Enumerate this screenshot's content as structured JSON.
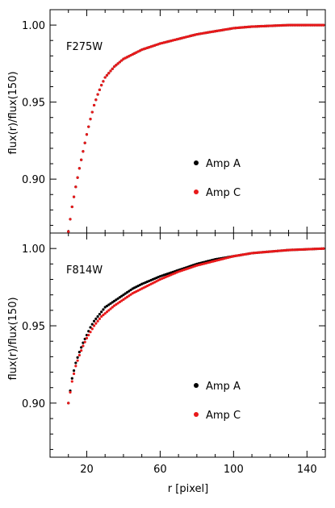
{
  "chart_data": [
    {
      "type": "scatter",
      "panel_label": "F275W",
      "ylabel": "flux(r)/flux(150)",
      "ylim": [
        0.865,
        1.01
      ],
      "xlim": [
        0,
        150
      ],
      "y_ticks": [
        0.9,
        0.95,
        1.0
      ],
      "y_tick_labels": [
        "0.90",
        "0.95",
        "1.00"
      ],
      "legend_placement": "center-right",
      "series": [
        {
          "name": "Amp A",
          "color": "#000000",
          "x": [
            10,
            12,
            14,
            16,
            18,
            20,
            22,
            24,
            26,
            28,
            30,
            35,
            40,
            45,
            50,
            60,
            70,
            80,
            90,
            100,
            110,
            120,
            130,
            140,
            150
          ],
          "y": [
            0.866,
            0.882,
            0.895,
            0.907,
            0.918,
            0.929,
            0.939,
            0.948,
            0.955,
            0.961,
            0.966,
            0.973,
            0.978,
            0.981,
            0.984,
            0.988,
            0.991,
            0.994,
            0.996,
            0.998,
            0.999,
            0.9995,
            1.0,
            1.0,
            1.0
          ]
        },
        {
          "name": "Amp C",
          "color": "#e8191a",
          "x": [
            10,
            12,
            14,
            16,
            18,
            20,
            22,
            24,
            26,
            28,
            30,
            35,
            40,
            45,
            50,
            60,
            70,
            80,
            90,
            100,
            110,
            120,
            130,
            140,
            150
          ],
          "y": [
            0.866,
            0.882,
            0.895,
            0.907,
            0.918,
            0.929,
            0.939,
            0.948,
            0.955,
            0.961,
            0.966,
            0.973,
            0.978,
            0.981,
            0.984,
            0.988,
            0.991,
            0.994,
            0.996,
            0.998,
            0.999,
            0.9995,
            1.0,
            1.0,
            1.0
          ]
        }
      ]
    },
    {
      "type": "scatter",
      "panel_label": "F814W",
      "ylabel": "flux(r)/flux(150)",
      "xlabel": "r [pixel]",
      "ylim": [
        0.865,
        1.01
      ],
      "xlim": [
        0,
        150
      ],
      "x_ticks": [
        20,
        60,
        100,
        140
      ],
      "x_tick_labels": [
        "20",
        "60",
        "100",
        "140"
      ],
      "y_ticks": [
        0.9,
        0.95,
        1.0
      ],
      "y_tick_labels": [
        "0.90",
        "0.95",
        "1.00"
      ],
      "legend_placement": "center-right",
      "series": [
        {
          "name": "Amp A",
          "color": "#000000",
          "x": [
            10,
            12,
            14,
            16,
            18,
            20,
            22,
            24,
            26,
            28,
            30,
            35,
            40,
            45,
            50,
            60,
            70,
            80,
            90,
            100,
            110,
            120,
            130,
            140,
            150
          ],
          "y": [
            0.9,
            0.916,
            0.926,
            0.933,
            0.939,
            0.944,
            0.949,
            0.953,
            0.956,
            0.959,
            0.962,
            0.966,
            0.97,
            0.974,
            0.977,
            0.982,
            0.986,
            0.99,
            0.993,
            0.995,
            0.997,
            0.998,
            0.999,
            0.9995,
            1.0
          ]
        },
        {
          "name": "Amp C",
          "color": "#e8191a",
          "x": [
            10,
            12,
            14,
            16,
            18,
            20,
            22,
            24,
            26,
            28,
            30,
            35,
            40,
            45,
            50,
            60,
            70,
            80,
            90,
            100,
            110,
            120,
            130,
            140,
            150
          ],
          "y": [
            0.9,
            0.914,
            0.924,
            0.931,
            0.937,
            0.942,
            0.946,
            0.95,
            0.953,
            0.956,
            0.958,
            0.963,
            0.967,
            0.971,
            0.974,
            0.98,
            0.985,
            0.989,
            0.992,
            0.995,
            0.997,
            0.998,
            0.999,
            0.9995,
            1.0
          ]
        }
      ]
    }
  ]
}
